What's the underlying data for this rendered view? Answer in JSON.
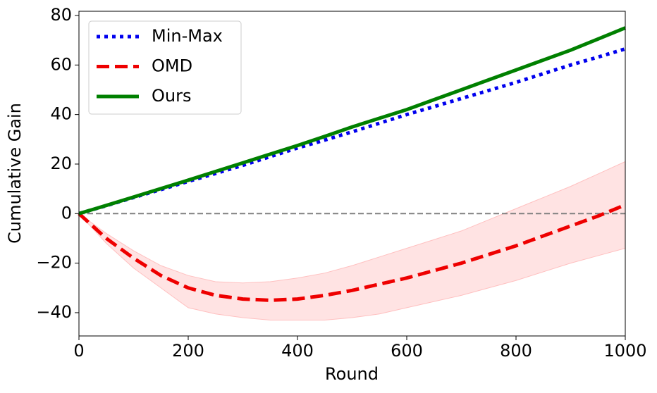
{
  "chart_data": {
    "type": "line",
    "xlabel": "Round",
    "ylabel": "Cumulative Gain",
    "x": [
      0,
      50,
      100,
      150,
      200,
      250,
      300,
      350,
      400,
      450,
      500,
      550,
      600,
      650,
      700,
      750,
      800,
      850,
      900,
      950,
      1000
    ],
    "series": [
      {
        "name": "Min-Max",
        "color": "#0000ee",
        "style": "dotted",
        "values": [
          0,
          3.2,
          6.5,
          9.7,
          13,
          16.2,
          19.5,
          23,
          26.5,
          29.7,
          33,
          36.5,
          40,
          43.2,
          46.5,
          49.7,
          53,
          56.5,
          60,
          63.2,
          66.5
        ]
      },
      {
        "name": "OMD",
        "color": "#ee0000",
        "style": "dashed",
        "values": [
          0,
          -10,
          -18,
          -25,
          -30,
          -33,
          -34.5,
          -35,
          -34.5,
          -33,
          -31,
          -28.5,
          -26,
          -23,
          -20,
          -16.5,
          -13,
          -9,
          -5,
          -1,
          3.5
        ],
        "band": {
          "color": "#ffc0c0",
          "lower": [
            0,
            -12,
            -22,
            -30,
            -38,
            -40.5,
            -42,
            -43,
            -43,
            -43,
            -42,
            -40.5,
            -38,
            -35.5,
            -33,
            -30,
            -27,
            -23.5,
            -20,
            -17,
            -14
          ],
          "upper": [
            0,
            -8,
            -15,
            -21,
            -25,
            -27.5,
            -28,
            -27.5,
            -26,
            -24,
            -21,
            -17.5,
            -14,
            -10.5,
            -7,
            -2.5,
            2,
            6.5,
            11,
            16,
            21
          ]
        }
      },
      {
        "name": "Ours",
        "color": "#008000",
        "style": "solid",
        "values": [
          0,
          3.3,
          6.7,
          10.1,
          13.5,
          17,
          20.5,
          24,
          27.5,
          31.2,
          35,
          38.5,
          42,
          46,
          50,
          54,
          58,
          62,
          66,
          70.5,
          75
        ]
      }
    ],
    "hline": {
      "value": 0,
      "color": "#808080"
    },
    "xlim": [
      0,
      1000
    ],
    "xticks": [
      0,
      200,
      400,
      600,
      800,
      1000
    ],
    "ylim": [
      -49.4,
      81.7
    ],
    "yticks": [
      {
        "value": -40,
        "label": "−40"
      },
      {
        "value": -20,
        "label": "−20"
      },
      0,
      20,
      40,
      60,
      80
    ],
    "legend": "upper-left"
  }
}
